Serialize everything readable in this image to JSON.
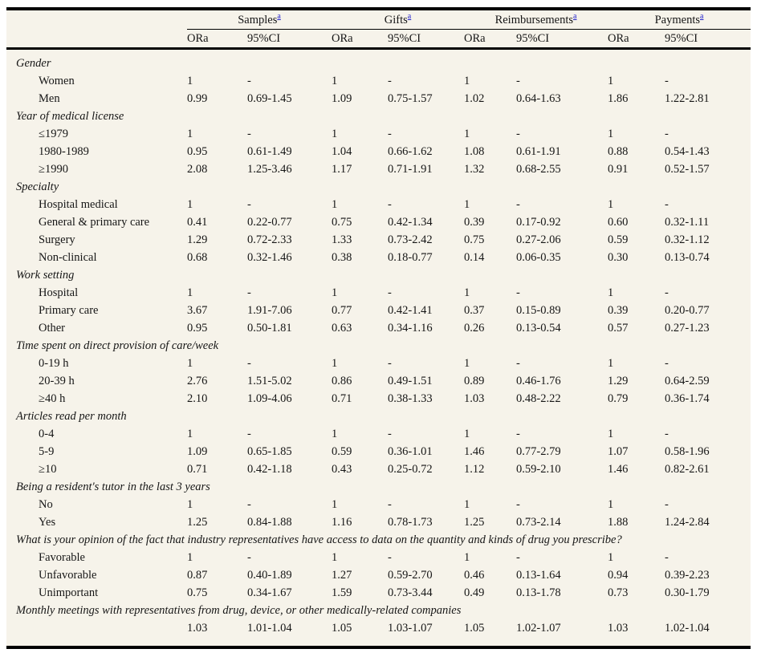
{
  "colors": {
    "table_background": "#f6f3ea",
    "footnote_link": "#2323cc",
    "rule": "#000000"
  },
  "table": {
    "corner_label": "",
    "subheaders": [
      "ORa",
      "95%CI"
    ],
    "column_groups": [
      {
        "label": "Samples",
        "footnote_marker": "a"
      },
      {
        "label": "Gifts",
        "footnote_marker": "a"
      },
      {
        "label": "Reimbursements",
        "footnote_marker": "a"
      },
      {
        "label": "Payments",
        "footnote_marker": "a"
      }
    ],
    "sections": [
      {
        "title": "Gender",
        "rows": [
          {
            "label": "Women",
            "values": [
              "1",
              "-",
              "1",
              "-",
              "1",
              "-",
              "1",
              "-"
            ]
          },
          {
            "label": "Men",
            "values": [
              "0.99",
              "0.69-1.45",
              "1.09",
              "0.75-1.57",
              "1.02",
              "0.64-1.63",
              "1.86",
              "1.22-2.81"
            ]
          }
        ]
      },
      {
        "title": "Year of medical license",
        "rows": [
          {
            "label": "≤1979",
            "values": [
              "1",
              "-",
              "1",
              "-",
              "1",
              "-",
              "1",
              "-"
            ]
          },
          {
            "label": "1980-1989",
            "values": [
              "0.95",
              "0.61-1.49",
              "1.04",
              "0.66-1.62",
              "1.08",
              "0.61-1.91",
              "0.88",
              "0.54-1.43"
            ]
          },
          {
            "label": "≥1990",
            "values": [
              "2.08",
              "1.25-3.46",
              "1.17",
              "0.71-1.91",
              "1.32",
              "0.68-2.55",
              "0.91",
              "0.52-1.57"
            ]
          }
        ]
      },
      {
        "title": "Specialty",
        "rows": [
          {
            "label": "Hospital medical",
            "values": [
              "1",
              "-",
              "1",
              "-",
              "1",
              "-",
              "1",
              "-"
            ]
          },
          {
            "label": "General & primary care",
            "values": [
              "0.41",
              "0.22-0.77",
              "0.75",
              "0.42-1.34",
              "0.39",
              "0.17-0.92",
              "0.60",
              "0.32-1.11"
            ]
          },
          {
            "label": "Surgery",
            "values": [
              "1.29",
              "0.72-2.33",
              "1.33",
              "0.73-2.42",
              "0.75",
              "0.27-2.06",
              "0.59",
              "0.32-1.12"
            ]
          },
          {
            "label": "Non-clinical",
            "values": [
              "0.68",
              "0.32-1.46",
              "0.38",
              "0.18-0.77",
              "0.14",
              "0.06-0.35",
              "0.30",
              "0.13-0.74"
            ]
          }
        ]
      },
      {
        "title": "Work setting",
        "rows": [
          {
            "label": "Hospital",
            "values": [
              "1",
              "-",
              "1",
              "-",
              "1",
              "-",
              "1",
              "-"
            ]
          },
          {
            "label": "Primary care",
            "values": [
              "3.67",
              "1.91-7.06",
              "0.77",
              "0.42-1.41",
              "0.37",
              "0.15-0.89",
              "0.39",
              "0.20-0.77"
            ]
          },
          {
            "label": "Other",
            "values": [
              "0.95",
              "0.50-1.81",
              "0.63",
              "0.34-1.16",
              "0.26",
              "0.13-0.54",
              "0.57",
              "0.27-1.23"
            ]
          }
        ]
      },
      {
        "title": "Time spent on direct provision of care/week",
        "rows": [
          {
            "label": "0-19 h",
            "values": [
              "1",
              "-",
              "1",
              "-",
              "1",
              "-",
              "1",
              "-"
            ]
          },
          {
            "label": "20-39 h",
            "values": [
              "2.76",
              "1.51-5.02",
              "0.86",
              "0.49-1.51",
              "0.89",
              "0.46-1.76",
              "1.29",
              "0.64-2.59"
            ]
          },
          {
            "label": "≥40 h",
            "values": [
              "2.10",
              "1.09-4.06",
              "0.71",
              "0.38-1.33",
              "1.03",
              "0.48-2.22",
              "0.79",
              "0.36-1.74"
            ]
          }
        ]
      },
      {
        "title": "Articles read per month",
        "rows": [
          {
            "label": "0-4",
            "values": [
              "1",
              "-",
              "1",
              "-",
              "1",
              "-",
              "1",
              "-"
            ]
          },
          {
            "label": "5-9",
            "values": [
              "1.09",
              "0.65-1.85",
              "0.59",
              "0.36-1.01",
              "1.46",
              "0.77-2.79",
              "1.07",
              "0.58-1.96"
            ]
          },
          {
            "label": "≥10",
            "values": [
              "0.71",
              "0.42-1.18",
              "0.43",
              "0.25-0.72",
              "1.12",
              "0.59-2.10",
              "1.46",
              "0.82-2.61"
            ]
          }
        ]
      },
      {
        "title": "Being a resident's tutor in the last 3 years",
        "rows": [
          {
            "label": "No",
            "values": [
              "1",
              "-",
              "1",
              "-",
              "1",
              "-",
              "1",
              "-"
            ]
          },
          {
            "label": "Yes",
            "values": [
              "1.25",
              "0.84-1.88",
              "1.16",
              "0.78-1.73",
              "1.25",
              "0.73-2.14",
              "1.88",
              "1.24-2.84"
            ]
          }
        ]
      },
      {
        "title": "What is your opinion of the fact that industry representatives have access to data on the quantity and kinds of drug you prescribe?",
        "rows": [
          {
            "label": "Favorable",
            "values": [
              "1",
              "-",
              "1",
              "-",
              "1",
              "-",
              "1",
              "-"
            ]
          },
          {
            "label": "Unfavorable",
            "values": [
              "0.87",
              "0.40-1.89",
              "1.27",
              "0.59-2.70",
              "0.46",
              "0.13-1.64",
              "0.94",
              "0.39-2.23"
            ]
          },
          {
            "label": "Unimportant",
            "values": [
              "0.75",
              "0.34-1.67",
              "1.59",
              "0.73-3.44",
              "0.49",
              "0.13-1.78",
              "0.73",
              "0.30-1.79"
            ]
          }
        ]
      },
      {
        "title": "Monthly meetings with representatives from drug, device, or other medically-related companies",
        "rows": [
          {
            "label": "",
            "values": [
              "1.03",
              "1.01-1.04",
              "1.05",
              "1.03-1.07",
              "1.05",
              "1.02-1.07",
              "1.03",
              "1.02-1.04"
            ]
          }
        ]
      }
    ]
  }
}
